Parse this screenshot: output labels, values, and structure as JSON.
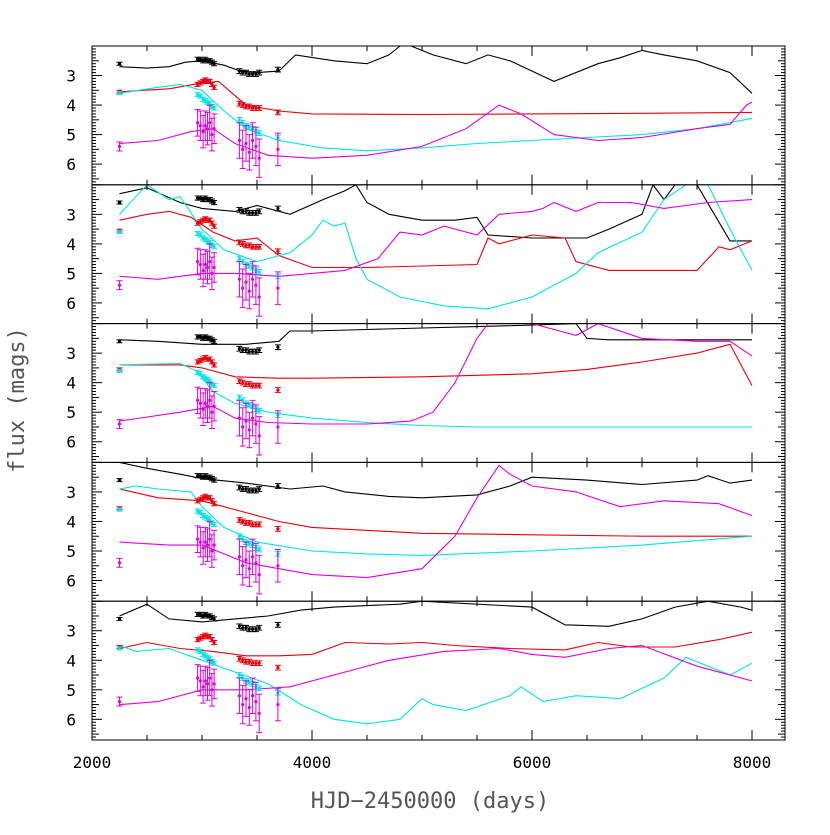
{
  "chart_data": {
    "type": "line",
    "xlabel": "HJD−2450000 (days)",
    "ylabel": "flux (mags)",
    "xlim": [
      2000,
      8300
    ],
    "x_ticks": [
      2000,
      4000,
      6000,
      8000
    ],
    "y_ticks": [
      3,
      4,
      5,
      6
    ],
    "ylim_top_bottom": [
      2.0,
      6.7
    ],
    "y_inverted": true,
    "grid": false,
    "legend": "none",
    "colors": {
      "black": "#000000",
      "red": "#e8000b",
      "cyan": "#00e5e5",
      "magenta": "#e000e0"
    },
    "observations": {
      "x": [
        2250,
        2960,
        2985,
        3010,
        3030,
        3050,
        3070,
        3090,
        3110,
        3340,
        3370,
        3400,
        3430,
        3460,
        3490,
        3520,
        3690
      ],
      "black_y": [
        2.6,
        2.45,
        2.45,
        2.5,
        2.45,
        2.5,
        2.5,
        2.55,
        2.6,
        2.85,
        2.9,
        2.9,
        2.95,
        2.95,
        2.95,
        2.9,
        2.8
      ],
      "red_y": [
        3.55,
        3.3,
        3.25,
        3.2,
        3.15,
        3.2,
        3.2,
        3.3,
        3.4,
        3.95,
        4.0,
        4.05,
        4.05,
        4.1,
        4.1,
        4.1,
        4.25
      ],
      "cyan_y": [
        3.6,
        3.65,
        3.7,
        3.8,
        3.85,
        3.9,
        3.95,
        4.05,
        4.1,
        4.5,
        4.6,
        4.7,
        4.75,
        4.8,
        4.9,
        4.95,
        5.1
      ],
      "magenta_y": [
        5.4,
        4.6,
        4.7,
        4.9,
        4.7,
        4.8,
        4.6,
        5.0,
        4.8,
        5.2,
        5.5,
        5.3,
        5.6,
        5.2,
        5.4,
        5.8,
        5.5
      ],
      "magenta_err": [
        0.15,
        0.45,
        0.5,
        0.55,
        0.5,
        0.55,
        0.6,
        0.55,
        0.5,
        0.6,
        0.65,
        0.6,
        0.6,
        0.6,
        0.65,
        0.65,
        0.55
      ],
      "other_err": [
        0.05,
        0.07,
        0.07,
        0.07,
        0.07,
        0.07,
        0.07,
        0.07,
        0.07,
        0.08,
        0.08,
        0.08,
        0.08,
        0.08,
        0.08,
        0.08,
        0.08
      ]
    },
    "panels": [
      {
        "series": [
          {
            "color": "black",
            "x": [
              2250,
              2500,
              2700,
              2850,
              3000,
              3200,
              3350,
              3500,
              3700,
              3850,
              4200,
              4500,
              4700,
              4800,
              4900,
              5100,
              5400,
              5600,
              5800,
              6200,
              6600,
              6800,
              7000,
              7200,
              7500,
              7800,
              8000
            ],
            "y": [
              2.7,
              2.75,
              2.7,
              2.55,
              2.5,
              2.65,
              2.85,
              2.9,
              2.85,
              2.3,
              2.5,
              2.6,
              2.3,
              2.0,
              2.0,
              2.3,
              2.6,
              2.3,
              2.5,
              3.2,
              2.6,
              2.4,
              2.15,
              2.3,
              2.5,
              2.9,
              3.6
            ]
          },
          {
            "color": "red",
            "x": [
              2250,
              2700,
              3000,
              3150,
              3400,
              3700,
              4000,
              5000,
              6000,
              7000,
              8000
            ],
            "y": [
              3.55,
              3.45,
              3.25,
              3.2,
              4.0,
              4.2,
              4.3,
              4.32,
              4.3,
              4.28,
              4.25
            ]
          },
          {
            "color": "cyan",
            "x": [
              2250,
              2600,
              2800,
              3000,
              3200,
              3400,
              3700,
              4100,
              4500,
              5000,
              5500,
              6000,
              6500,
              7000,
              7500,
              8000
            ],
            "y": [
              3.6,
              3.4,
              3.3,
              3.5,
              4.2,
              4.8,
              5.2,
              5.45,
              5.55,
              5.45,
              5.3,
              5.2,
              5.1,
              5.0,
              4.8,
              4.45
            ]
          },
          {
            "color": "magenta",
            "x": [
              2250,
              2600,
              2900,
              3100,
              3300,
              3600,
              4000,
              4500,
              5000,
              5400,
              5700,
              5900,
              6200,
              6600,
              7000,
              7500,
              7800,
              7950,
              8000
            ],
            "y": [
              5.3,
              5.2,
              4.9,
              4.8,
              5.3,
              5.7,
              5.8,
              5.7,
              5.4,
              4.8,
              4.0,
              4.3,
              5.0,
              5.2,
              5.1,
              4.8,
              4.65,
              4.0,
              3.9
            ]
          }
        ]
      },
      {
        "series": [
          {
            "color": "black",
            "x": [
              2250,
              2500,
              2800,
              3000,
              3300,
              3500,
              3800,
              4100,
              4300,
              4400,
              4500,
              4700,
              5000,
              5300,
              5500,
              5600,
              6000,
              6500,
              6700,
              7000,
              7100,
              7200,
              7300,
              7500,
              7800,
              8000
            ],
            "y": [
              2.3,
              2.1,
              2.6,
              2.8,
              2.9,
              2.7,
              3.0,
              2.5,
              2.2,
              2.0,
              2.6,
              3.0,
              3.2,
              3.2,
              3.1,
              3.7,
              3.8,
              3.8,
              3.5,
              3.0,
              2.0,
              2.5,
              2.0,
              2.0,
              3.9,
              3.9
            ]
          },
          {
            "color": "red",
            "x": [
              2250,
              2500,
              2700,
              2900,
              3100,
              3300,
              3500,
              3700,
              4000,
              4500,
              5000,
              5500,
              5600,
              5700,
              6000,
              6300,
              6400,
              6700,
              7000,
              7500,
              7700,
              7800,
              8000
            ],
            "y": [
              3.2,
              3.0,
              2.9,
              3.1,
              3.6,
              3.9,
              3.8,
              4.4,
              4.8,
              4.8,
              4.75,
              4.7,
              3.8,
              4.0,
              3.7,
              3.8,
              4.6,
              4.9,
              4.9,
              4.9,
              4.1,
              4.2,
              3.9
            ]
          },
          {
            "color": "cyan",
            "x": [
              2250,
              2500,
              2700,
              2800,
              3000,
              3200,
              3500,
              3800,
              4000,
              4100,
              4200,
              4300,
              4400,
              4500,
              4800,
              5200,
              5600,
              6000,
              6400,
              6600,
              7000,
              7200,
              7400,
              7600,
              7800,
              8000
            ],
            "y": [
              3.0,
              2.0,
              2.5,
              2.4,
              3.5,
              4.2,
              4.6,
              4.3,
              3.7,
              3.2,
              3.4,
              3.3,
              4.5,
              5.2,
              5.8,
              6.1,
              6.2,
              5.8,
              5.0,
              4.3,
              3.6,
              2.5,
              2.0,
              2.0,
              3.5,
              4.9
            ]
          },
          {
            "color": "magenta",
            "x": [
              2250,
              2600,
              3000,
              3300,
              3700,
              4000,
              4300,
              4600,
              4800,
              5000,
              5200,
              5500,
              5700,
              6000,
              6100,
              6200,
              6400,
              6600,
              6900,
              7200,
              7600,
              8000
            ],
            "y": [
              5.1,
              5.2,
              5.0,
              5.0,
              5.1,
              5.0,
              4.9,
              4.5,
              3.6,
              3.7,
              3.4,
              3.7,
              3.0,
              2.9,
              2.8,
              2.6,
              2.9,
              2.6,
              2.6,
              2.8,
              2.6,
              2.5
            ]
          }
        ]
      },
      {
        "series": [
          {
            "color": "black",
            "x": [
              2250,
              2600,
              3000,
              3400,
              3700,
              3800,
              4000,
              4500,
              5000,
              5500,
              6000,
              6400,
              6500,
              6700,
              7000,
              7500,
              8000
            ],
            "y": [
              2.55,
              2.6,
              2.7,
              2.7,
              2.6,
              2.25,
              2.25,
              2.2,
              2.15,
              2.1,
              2.05,
              2.0,
              2.5,
              2.55,
              2.55,
              2.55,
              2.55
            ]
          },
          {
            "color": "red",
            "x": [
              2250,
              2800,
              3000,
              3300,
              3700,
              4000,
              5000,
              6000,
              6500,
              7000,
              7500,
              7800,
              8000
            ],
            "y": [
              3.4,
              3.4,
              3.5,
              3.8,
              3.85,
              3.85,
              3.8,
              3.7,
              3.55,
              3.3,
              3.0,
              2.7,
              4.1
            ]
          },
          {
            "color": "cyan",
            "x": [
              2250,
              2800,
              2950,
              3100,
              3300,
              3600,
              4000,
              4500,
              5000,
              5500,
              6000,
              7000,
              8000
            ],
            "y": [
              3.4,
              3.35,
              3.6,
              4.3,
              4.7,
              5.0,
              5.2,
              5.35,
              5.45,
              5.5,
              5.5,
              5.5,
              5.5
            ]
          },
          {
            "color": "magenta",
            "x": [
              2250,
              2800,
              3100,
              3300,
              3600,
              4000,
              4500,
              4900,
              5100,
              5300,
              5500,
              5600,
              5800,
              6000,
              6200,
              6400,
              6600,
              7000,
              7500,
              7800,
              8000
            ],
            "y": [
              5.3,
              5.0,
              4.8,
              5.2,
              5.35,
              5.4,
              5.4,
              5.3,
              5.0,
              4.0,
              2.5,
              2.0,
              2.0,
              2.0,
              2.2,
              2.4,
              2.0,
              2.5,
              2.6,
              2.6,
              3.1
            ]
          }
        ]
      },
      {
        "series": [
          {
            "color": "black",
            "x": [
              2250,
              2500,
              2800,
              3000,
              3400,
              3800,
              4100,
              4300,
              4700,
              5000,
              5500,
              5800,
              6000,
              6500,
              7000,
              7500,
              7600,
              7800,
              8000
            ],
            "y": [
              2.0,
              2.2,
              2.4,
              2.55,
              2.7,
              2.9,
              2.8,
              3.0,
              3.15,
              3.2,
              3.1,
              2.8,
              2.5,
              2.6,
              2.75,
              2.6,
              2.45,
              2.7,
              2.6
            ]
          },
          {
            "color": "red",
            "x": [
              2250,
              2600,
              3000,
              3400,
              3700,
              4000,
              5000,
              6000,
              7000,
              8000
            ],
            "y": [
              2.9,
              3.2,
              3.3,
              3.7,
              4.0,
              4.2,
              4.4,
              4.45,
              4.5,
              4.5
            ]
          },
          {
            "color": "cyan",
            "x": [
              2250,
              2400,
              2600,
              2900,
              3000,
              3200,
              3500,
              4000,
              4500,
              5000,
              6000,
              7000,
              8000
            ],
            "y": [
              2.9,
              2.8,
              2.9,
              3.0,
              3.5,
              4.2,
              4.7,
              5.0,
              5.1,
              5.15,
              5.0,
              4.8,
              4.5
            ]
          },
          {
            "color": "magenta",
            "x": [
              2250,
              2700,
              3000,
              3200,
              3400,
              3700,
              4000,
              4500,
              5000,
              5300,
              5500,
              5700,
              5800,
              6000,
              6400,
              6800,
              7200,
              7700,
              8000
            ],
            "y": [
              4.7,
              4.8,
              4.8,
              5.1,
              5.4,
              5.6,
              5.8,
              5.9,
              5.6,
              4.5,
              3.2,
              2.1,
              2.4,
              2.8,
              3.0,
              3.5,
              3.3,
              3.4,
              3.8
            ]
          }
        ]
      },
      {
        "series": [
          {
            "color": "black",
            "x": [
              2250,
              2500,
              2700,
              3000,
              3300,
              3600,
              3900,
              4200,
              4500,
              4800,
              5000,
              6000,
              6300,
              6700,
              7000,
              7300,
              7600,
              7900,
              8000
            ],
            "y": [
              2.5,
              2.1,
              2.6,
              2.7,
              2.6,
              2.5,
              2.3,
              2.2,
              2.15,
              2.1,
              2.0,
              2.2,
              2.8,
              2.85,
              2.6,
              2.2,
              2.0,
              2.2,
              2.3
            ]
          },
          {
            "color": "red",
            "x": [
              2250,
              2500,
              2800,
              3100,
              3400,
              3700,
              4000,
              4300,
              4700,
              5000,
              5300,
              5800,
              6300,
              6600,
              6900,
              7300,
              7700,
              8000
            ],
            "y": [
              3.6,
              3.4,
              3.6,
              3.7,
              3.85,
              3.85,
              3.8,
              3.4,
              3.45,
              3.4,
              3.5,
              3.6,
              3.65,
              3.4,
              3.55,
              3.55,
              3.3,
              3.05
            ]
          },
          {
            "color": "cyan",
            "x": [
              2250,
              2400,
              2700,
              3000,
              3300,
              3600,
              3900,
              4200,
              4500,
              4800,
              5000,
              5100,
              5400,
              5800,
              5900,
              6100,
              6400,
              6800,
              7200,
              7400,
              7600,
              7800,
              8000
            ],
            "y": [
              3.5,
              3.7,
              3.6,
              4.0,
              4.4,
              4.8,
              5.5,
              6.0,
              6.15,
              6.0,
              5.3,
              5.5,
              5.7,
              5.2,
              4.9,
              5.4,
              5.2,
              5.3,
              4.6,
              3.9,
              4.2,
              4.5,
              4.1
            ]
          },
          {
            "color": "magenta",
            "x": [
              2250,
              2600,
              3000,
              3400,
              3800,
              4200,
              4700,
              5200,
              5700,
              6000,
              6300,
              6700,
              7000,
              7500,
              8000
            ],
            "y": [
              5.5,
              5.4,
              5.0,
              5.0,
              4.9,
              4.5,
              4.0,
              3.7,
              3.6,
              3.8,
              3.9,
              3.6,
              3.5,
              4.2,
              4.7
            ]
          }
        ]
      }
    ]
  }
}
